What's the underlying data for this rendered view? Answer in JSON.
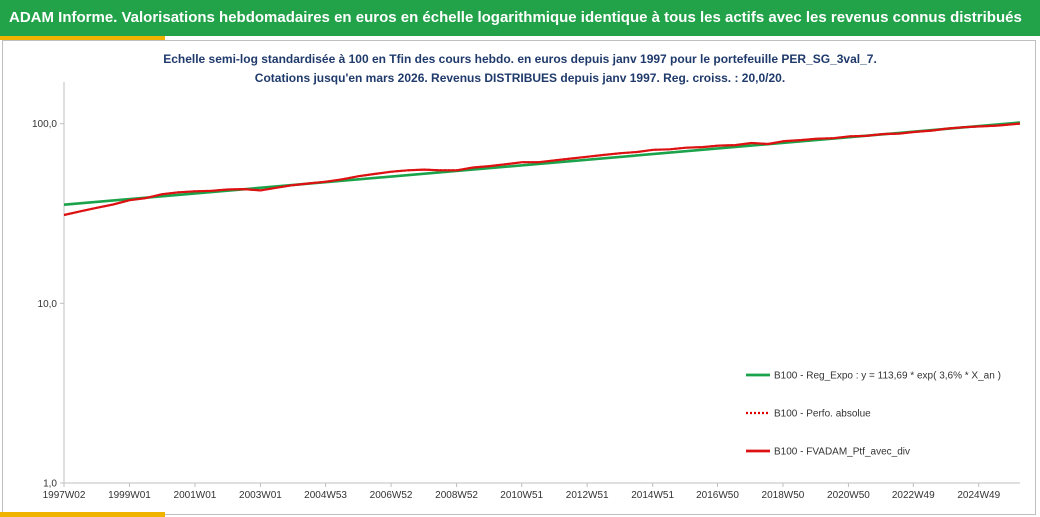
{
  "header": {
    "title": "ADAM Informe. Valorisations hebdomadaires en euros en échelle logarithmique identique à tous les actifs avec les revenus connus distribués"
  },
  "colors": {
    "banner": "#22a34a",
    "accent": "#f0b400",
    "regression": "#1aa34a",
    "performance": "#e00000",
    "portfolio": "#dd1111"
  },
  "chart_data": {
    "type": "line",
    "title": "",
    "subtitle_lines": [
      "Echelle semi-log standardisée  à 100 en Tfin des cours hebdo.  en euros depuis janv 1997 pour le portefeuille PER_SG_3val_7.",
      "Cotations  jusqu'en mars 2026. Revenus DISTRIBUES depuis janv 1997. Reg. croiss. : 20,0/20."
    ],
    "xlabel": "",
    "ylabel": "",
    "y_scale": "log",
    "ylim": [
      1,
      150
    ],
    "y_ticks": [
      {
        "value": 1,
        "label": "1,0"
      },
      {
        "value": 10,
        "label": "10,0"
      },
      {
        "value": 100,
        "label": "100,0"
      }
    ],
    "x_range": [
      1997.0,
      2026.2
    ],
    "x_ticks": [
      {
        "x": 1997.0,
        "label": "1997W02"
      },
      {
        "x": 1999.0,
        "label": "1999W01"
      },
      {
        "x": 2001.0,
        "label": "2001W01"
      },
      {
        "x": 2003.0,
        "label": "2003W01"
      },
      {
        "x": 2004.99,
        "label": "2004W53"
      },
      {
        "x": 2006.99,
        "label": "2006W52"
      },
      {
        "x": 2008.99,
        "label": "2008W52"
      },
      {
        "x": 2010.98,
        "label": "2010W51"
      },
      {
        "x": 2012.98,
        "label": "2012W51"
      },
      {
        "x": 2014.98,
        "label": "2014W51"
      },
      {
        "x": 2016.96,
        "label": "2016W50"
      },
      {
        "x": 2018.96,
        "label": "2018W50"
      },
      {
        "x": 2020.96,
        "label": "2020W50"
      },
      {
        "x": 2022.94,
        "label": "2022W49"
      },
      {
        "x": 2024.94,
        "label": "2024W49"
      }
    ],
    "grid": false,
    "legend_position": "right",
    "series": [
      {
        "name": "B100 - Reg_Expo : y = 113,69 * exp( 3,6% * X_an )",
        "style": "solid",
        "color": "#1aa34a",
        "x": [
          1997.0,
          2026.2
        ],
        "y": [
          35.4,
          101.5
        ]
      },
      {
        "name": "B100 - Perfo. absolue",
        "style": "dotted",
        "color": "#e00000",
        "x": [
          1997.0,
          1997.5,
          1998.0,
          1998.5,
          1999.0,
          1999.5,
          2000.0,
          2000.5,
          2001.0,
          2001.5,
          2002.0,
          2002.5,
          2003.0,
          2003.5,
          2004.0,
          2004.5,
          2005.0,
          2005.5,
          2006.0,
          2006.5,
          2007.0,
          2007.5,
          2008.0,
          2008.5,
          2009.0,
          2009.5,
          2010.0,
          2010.5,
          2011.0,
          2011.5,
          2012.0,
          2012.5,
          2013.0,
          2013.5,
          2014.0,
          2014.5,
          2015.0,
          2015.5,
          2016.0,
          2016.5,
          2017.0,
          2017.5,
          2018.0,
          2018.5,
          2019.0,
          2019.5,
          2020.0,
          2020.5,
          2021.0,
          2021.5,
          2022.0,
          2022.5,
          2023.0,
          2023.5,
          2024.0,
          2024.5,
          2025.0,
          2025.5,
          2026.2
        ],
        "y": [
          31.0,
          32.5,
          34.0,
          35.5,
          37.5,
          38.5,
          40.5,
          41.5,
          42.0,
          42.3,
          43.0,
          43.2,
          42.5,
          44.0,
          45.5,
          46.5,
          47.5,
          49.0,
          51.0,
          52.5,
          54.0,
          55.0,
          55.5,
          55.0,
          55.0,
          57.0,
          58.0,
          59.5,
          61.0,
          61.0,
          62.5,
          64.0,
          65.5,
          67.0,
          68.5,
          69.5,
          71.5,
          72.0,
          73.5,
          74.0,
          75.5,
          76.0,
          78.0,
          77.0,
          80.0,
          81.0,
          82.5,
          83.0,
          85.0,
          85.5,
          87.5,
          88.0,
          90.0,
          91.5,
          94.0,
          95.5,
          96.5,
          97.5,
          100.0
        ]
      },
      {
        "name": "B100 - FVADAM_Ptf_avec_div",
        "style": "solid",
        "color": "#dd1111",
        "x": [
          1997.0,
          1997.5,
          1998.0,
          1998.5,
          1999.0,
          1999.5,
          2000.0,
          2000.5,
          2001.0,
          2001.5,
          2002.0,
          2002.5,
          2003.0,
          2003.5,
          2004.0,
          2004.5,
          2005.0,
          2005.5,
          2006.0,
          2006.5,
          2007.0,
          2007.5,
          2008.0,
          2008.5,
          2009.0,
          2009.5,
          2010.0,
          2010.5,
          2011.0,
          2011.5,
          2012.0,
          2012.5,
          2013.0,
          2013.5,
          2014.0,
          2014.5,
          2015.0,
          2015.5,
          2016.0,
          2016.5,
          2017.0,
          2017.5,
          2018.0,
          2018.5,
          2019.0,
          2019.5,
          2020.0,
          2020.5,
          2021.0,
          2021.5,
          2022.0,
          2022.5,
          2023.0,
          2023.5,
          2024.0,
          2024.5,
          2025.0,
          2025.5,
          2026.2
        ],
        "y": [
          31.0,
          32.5,
          34.0,
          35.5,
          37.5,
          38.5,
          40.5,
          41.5,
          42.0,
          42.3,
          43.0,
          43.2,
          42.5,
          44.0,
          45.5,
          46.5,
          47.5,
          49.0,
          51.0,
          52.5,
          54.0,
          55.0,
          55.5,
          55.0,
          55.0,
          57.0,
          58.0,
          59.5,
          61.0,
          61.0,
          62.5,
          64.0,
          65.5,
          67.0,
          68.5,
          69.5,
          71.5,
          72.0,
          73.5,
          74.0,
          75.5,
          76.0,
          78.0,
          77.0,
          80.0,
          81.0,
          82.5,
          83.0,
          85.0,
          85.5,
          87.5,
          88.0,
          90.0,
          91.5,
          94.0,
          95.5,
          96.5,
          97.5,
          100.0
        ]
      }
    ]
  }
}
